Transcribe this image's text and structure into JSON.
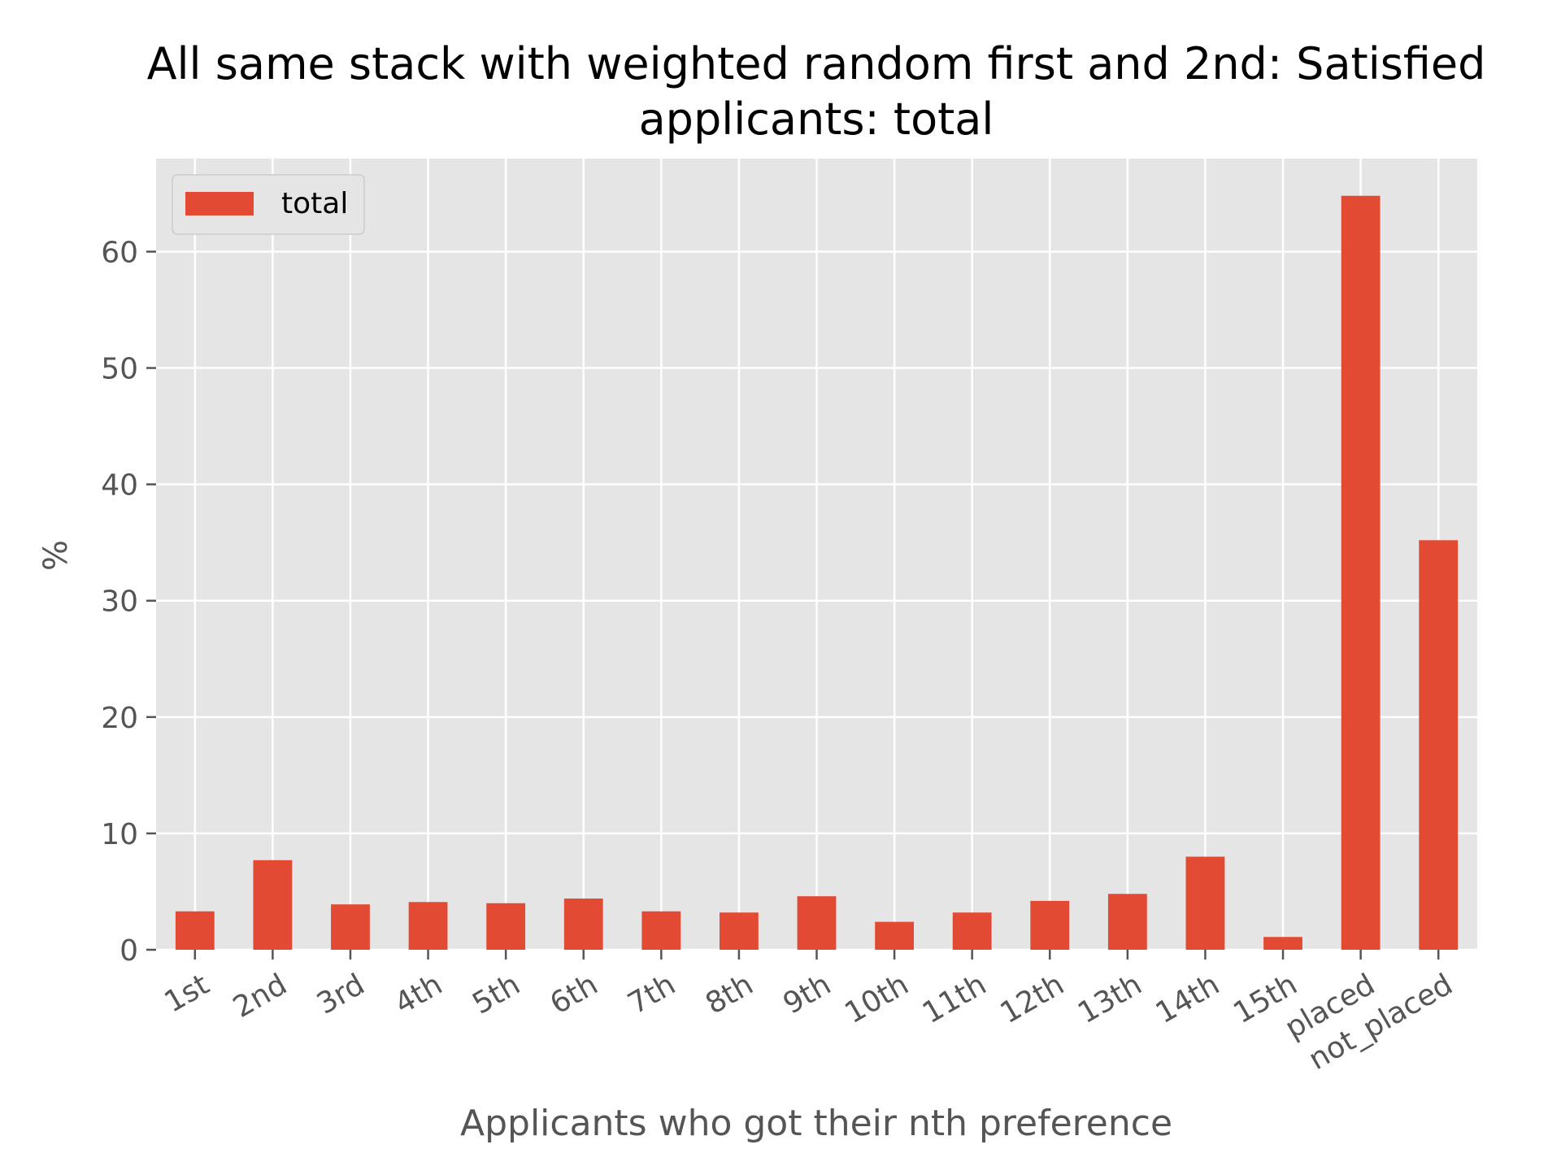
{
  "chart_data": {
    "type": "bar",
    "title_lines": [
      "All same stack with weighted random first and 2nd: Satisfied",
      "applicants: total"
    ],
    "xlabel": "Applicants who got their nth preference",
    "ylabel": "%",
    "categories": [
      "1st",
      "2nd",
      "3rd",
      "4th",
      "5th",
      "6th",
      "7th",
      "8th",
      "9th",
      "10th",
      "11th",
      "12th",
      "13th",
      "14th",
      "15th",
      "placed",
      "not_placed"
    ],
    "series": [
      {
        "name": "total",
        "color": "#E24A33",
        "values": [
          3.3,
          7.7,
          3.9,
          4.1,
          4.0,
          4.4,
          3.3,
          3.2,
          4.6,
          2.4,
          3.2,
          4.2,
          4.8,
          8.0,
          1.1,
          64.8,
          35.2
        ]
      }
    ],
    "ylim": [
      0,
      68
    ],
    "yticks": [
      0,
      10,
      20,
      30,
      40,
      50,
      60
    ],
    "grid": true,
    "legend_position": "top-left",
    "plot_background": "#E5E5E5",
    "grid_color": "#FFFFFF"
  }
}
